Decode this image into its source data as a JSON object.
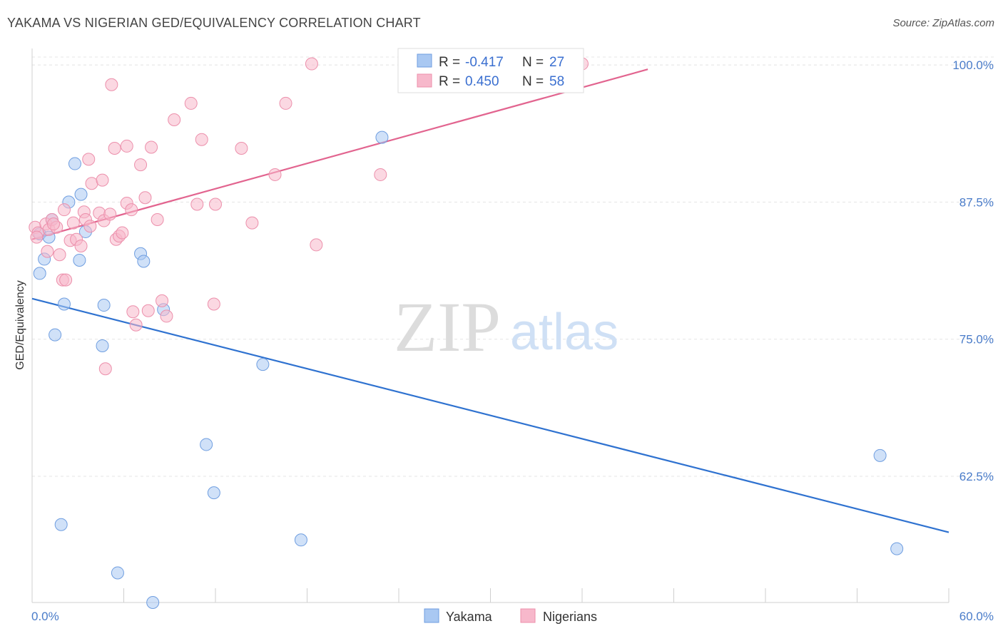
{
  "title": "YAKAMA VS NIGERIAN GED/EQUIVALENCY CORRELATION CHART",
  "source": "Source: ZipAtlas.com",
  "watermark": {
    "zip": "ZIP",
    "atlas": "atlas"
  },
  "legend": {
    "rows": [
      {
        "r_label": "R =",
        "r_value": "-0.417",
        "n_label": "N =",
        "n_value": "27",
        "color": "#a9c8f2"
      },
      {
        "r_label": "R =",
        "r_value": "0.450",
        "n_label": "N =",
        "n_value": "58",
        "color": "#f7b8cb"
      }
    ]
  },
  "chart_data": {
    "type": "scatter",
    "title": "YAKAMA VS NIGERIAN GED/EQUIVALENCY CORRELATION CHART",
    "xlabel": "",
    "ylabel": "GED/Equivalency",
    "xlim": [
      0,
      60
    ],
    "ylim": [
      51,
      101.5
    ],
    "x_tick_labels": [
      "0.0%",
      "60.0%"
    ],
    "y_ticks": [
      62.5,
      75.0,
      87.5,
      100.0
    ],
    "y_tick_labels": [
      "62.5%",
      "75.0%",
      "87.5%",
      "100.0%"
    ],
    "grid": true,
    "series": [
      {
        "name": "Yakama",
        "color": "#a9c8f2",
        "stroke": "#6f9ee0",
        "line_color": "#2f72d0",
        "trend": {
          "x": [
            0,
            60
          ],
          "y": [
            78.7,
            57.4
          ]
        },
        "points": [
          [
            0.5,
            84.6
          ],
          [
            0.5,
            81.0
          ],
          [
            0.8,
            82.3
          ],
          [
            1.1,
            84.3
          ],
          [
            1.3,
            85.9
          ],
          [
            2.1,
            78.2
          ],
          [
            1.5,
            75.4
          ],
          [
            2.4,
            87.5
          ],
          [
            2.8,
            91.0
          ],
          [
            3.2,
            88.2
          ],
          [
            3.5,
            84.8
          ],
          [
            3.1,
            82.2
          ],
          [
            4.6,
            74.4
          ],
          [
            4.7,
            78.1
          ],
          [
            7.1,
            82.8
          ],
          [
            7.3,
            82.1
          ],
          [
            8.6,
            77.7
          ],
          [
            15.1,
            72.7
          ],
          [
            11.4,
            65.4
          ],
          [
            11.9,
            61.0
          ],
          [
            1.9,
            58.1
          ],
          [
            5.6,
            53.7
          ],
          [
            7.9,
            51.0
          ],
          [
            17.6,
            56.7
          ],
          [
            22.9,
            93.4
          ],
          [
            55.5,
            64.4
          ],
          [
            56.6,
            55.9
          ]
        ]
      },
      {
        "name": "Nigerians",
        "color": "#f7b8cb",
        "stroke": "#ec8fab",
        "line_color": "#e2648f",
        "trend": {
          "x": [
            0,
            40.3
          ],
          "y": [
            84.1,
            99.6
          ]
        },
        "points": [
          [
            0.2,
            85.2
          ],
          [
            0.4,
            84.7
          ],
          [
            0.3,
            84.3
          ],
          [
            0.9,
            85.5
          ],
          [
            1.1,
            85.0
          ],
          [
            1.3,
            85.9
          ],
          [
            1.6,
            85.2
          ],
          [
            1.0,
            83.0
          ],
          [
            1.8,
            82.7
          ],
          [
            2.0,
            80.4
          ],
          [
            2.2,
            80.4
          ],
          [
            2.5,
            84.0
          ],
          [
            2.1,
            86.8
          ],
          [
            2.7,
            85.6
          ],
          [
            2.9,
            84.1
          ],
          [
            3.2,
            83.5
          ],
          [
            3.4,
            86.6
          ],
          [
            3.5,
            85.9
          ],
          [
            3.8,
            85.3
          ],
          [
            3.9,
            89.2
          ],
          [
            4.4,
            86.5
          ],
          [
            4.6,
            89.5
          ],
          [
            4.7,
            85.8
          ],
          [
            5.1,
            86.4
          ],
          [
            5.2,
            98.2
          ],
          [
            5.4,
            92.4
          ],
          [
            5.5,
            84.1
          ],
          [
            5.7,
            84.4
          ],
          [
            5.9,
            84.7
          ],
          [
            6.2,
            87.4
          ],
          [
            6.2,
            92.6
          ],
          [
            6.5,
            86.8
          ],
          [
            6.6,
            77.5
          ],
          [
            6.8,
            76.3
          ],
          [
            7.1,
            90.9
          ],
          [
            7.4,
            87.9
          ],
          [
            7.8,
            92.5
          ],
          [
            8.2,
            85.9
          ],
          [
            8.5,
            78.5
          ],
          [
            8.8,
            77.1
          ],
          [
            9.3,
            95.0
          ],
          [
            4.8,
            72.3
          ],
          [
            3.7,
            91.4
          ],
          [
            10.4,
            96.5
          ],
          [
            10.8,
            87.3
          ],
          [
            11.1,
            93.2
          ],
          [
            12.0,
            87.3
          ],
          [
            11.9,
            78.2
          ],
          [
            13.7,
            92.4
          ],
          [
            14.4,
            85.6
          ],
          [
            15.9,
            90.0
          ],
          [
            16.6,
            96.5
          ],
          [
            18.6,
            83.6
          ],
          [
            18.3,
            100.1
          ],
          [
            22.8,
            90.0
          ],
          [
            36.0,
            100.1
          ],
          [
            7.6,
            77.6
          ],
          [
            1.4,
            85.5
          ]
        ]
      }
    ]
  }
}
